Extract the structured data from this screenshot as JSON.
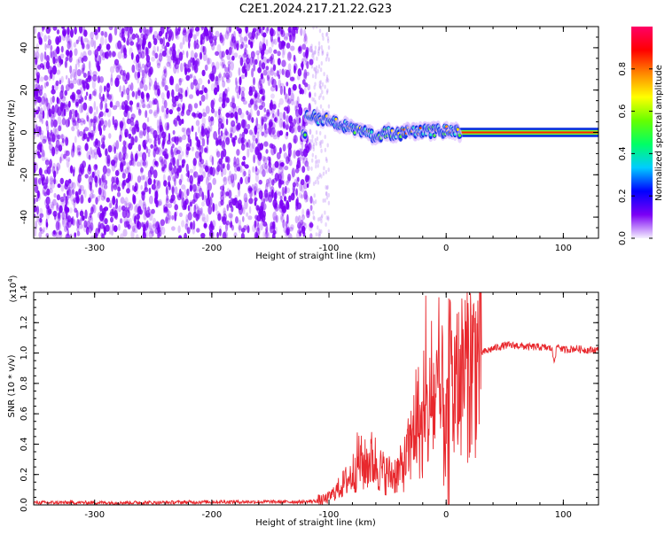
{
  "title": "C2E1.2024.217.21.22.G23",
  "colors": {
    "snr_line": "#e8282d",
    "noise": "#7b00f5",
    "axis": "#000000",
    "colorbar_stops": [
      "#f5f0ff",
      "#7b00f5",
      "#0000ff",
      "#00ccff",
      "#00ff66",
      "#66ff00",
      "#ffff00",
      "#ff8800",
      "#ff0000",
      "#ff0066"
    ]
  },
  "chart_data": [
    {
      "type": "heatmap",
      "title": "",
      "xlabel": "Height of straight line (km)",
      "ylabel": "Frequency (Hz)",
      "xlim": [
        -352,
        130
      ],
      "ylim": [
        -50,
        50
      ],
      "xticks": [
        -300,
        -200,
        -100,
        0,
        100
      ],
      "yticks": [
        -40,
        -20,
        0,
        20,
        40
      ],
      "noise_region_x": [
        -352,
        -115
      ],
      "sparse_region_x": [
        -115,
        -100
      ],
      "signal_track": [
        {
          "x": -120,
          "y": 7.5
        },
        {
          "x": -110,
          "y": 7
        },
        {
          "x": -100,
          "y": 6
        },
        {
          "x": -90,
          "y": 4
        },
        {
          "x": -80,
          "y": 2
        },
        {
          "x": -70,
          "y": 0
        },
        {
          "x": -60,
          "y": -2
        },
        {
          "x": -50,
          "y": 0
        },
        {
          "x": -40,
          "y": -1
        },
        {
          "x": -30,
          "y": 1
        },
        {
          "x": -20,
          "y": 0.5
        },
        {
          "x": -10,
          "y": 0.5
        },
        {
          "x": 0,
          "y": 1
        },
        {
          "x": 10,
          "y": 0
        },
        {
          "x": 130,
          "y": 0
        }
      ],
      "colorbar": {
        "label": "Normalized spectral amplitude",
        "range": [
          0,
          1
        ],
        "ticks": [
          "0.0",
          "0.2",
          "0.4",
          "0.6",
          "0.8"
        ]
      }
    },
    {
      "type": "line",
      "title": "",
      "xlabel": "Height of straight line (km)",
      "ylabel": "SNR (10 * v/v)",
      "scale_label": "(x10",
      "scale_exp": "4",
      "scale_close": ")",
      "xlim": [
        -352,
        130
      ],
      "ylim": [
        0,
        1.4
      ],
      "xticks": [
        -300,
        -200,
        -100,
        0,
        100
      ],
      "ytick_labels": [
        "0.0",
        "0.2",
        "0.4",
        "0.6",
        "0.8",
        "1.0",
        "1.2",
        "1.4"
      ],
      "series": [
        {
          "values_x": [
            -352,
            -300,
            -250,
            -200,
            -150,
            -120,
            -105,
            -100,
            -90,
            -80,
            -75,
            -70,
            -65,
            -60,
            -55,
            -50,
            -45,
            -40,
            -35,
            -30,
            -25,
            -20,
            -15,
            -10,
            -5,
            0,
            3,
            5,
            10,
            15,
            20,
            25,
            30,
            40,
            50,
            60,
            70,
            80,
            90,
            92,
            95,
            100,
            110,
            120,
            130
          ],
          "values_y": [
            0.015,
            0.015,
            0.015,
            0.02,
            0.02,
            0.02,
            0.03,
            0.05,
            0.12,
            0.2,
            0.3,
            0.25,
            0.3,
            0.28,
            0.22,
            0.2,
            0.2,
            0.22,
            0.28,
            0.4,
            0.6,
            0.45,
            0.6,
            0.7,
            0.65,
            0.6,
            0.9,
            0.7,
            0.8,
            0.9,
            0.92,
            0.95,
            1.0,
            1.03,
            1.05,
            1.05,
            1.04,
            1.04,
            1.03,
            0.95,
            1.05,
            1.02,
            1.03,
            1.02,
            1.02
          ]
        }
      ]
    }
  ]
}
